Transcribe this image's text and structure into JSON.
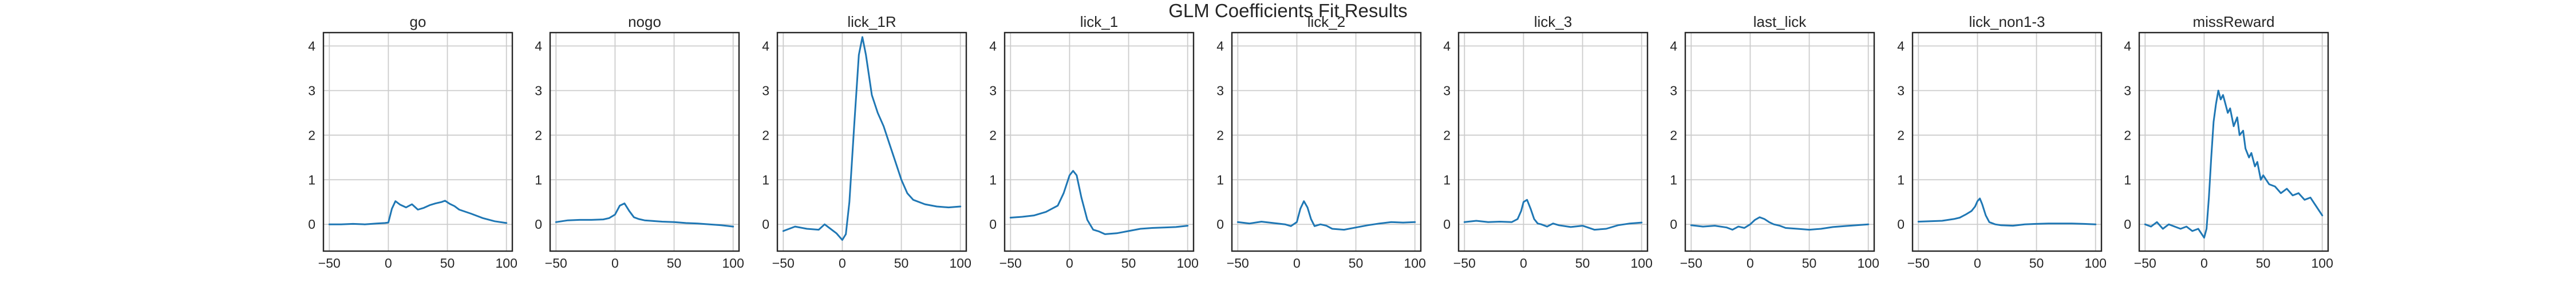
{
  "figure": {
    "title": "GLM Coefficients Fit Results"
  },
  "colors": {
    "line": "#1f77b4",
    "grid": "#cccccc",
    "axes": "#262626"
  },
  "chart_data": [
    {
      "type": "line",
      "title": "go",
      "xlabel": "",
      "ylabel": "",
      "xlim": [
        -55,
        105
      ],
      "ylim": [
        -0.6,
        4.3
      ],
      "xticks": [
        -50,
        0,
        50,
        100
      ],
      "yticks": [
        0,
        1,
        2,
        3,
        4
      ],
      "grid": true,
      "series": [
        {
          "x": [
            -50,
            -40,
            -30,
            -20,
            -10,
            -3,
            0,
            3,
            6,
            10,
            15,
            20,
            25,
            30,
            35,
            40,
            45,
            48,
            52,
            56,
            60,
            70,
            80,
            90,
            100
          ],
          "values": [
            0.0,
            0.0,
            0.01,
            0.0,
            0.02,
            0.03,
            0.04,
            0.35,
            0.52,
            0.44,
            0.38,
            0.45,
            0.33,
            0.37,
            0.43,
            0.47,
            0.5,
            0.53,
            0.46,
            0.41,
            0.33,
            0.24,
            0.14,
            0.07,
            0.03
          ]
        }
      ]
    },
    {
      "type": "line",
      "title": "nogo",
      "xlabel": "",
      "ylabel": "",
      "xlim": [
        -55,
        105
      ],
      "ylim": [
        -0.6,
        4.3
      ],
      "xticks": [
        -50,
        0,
        50,
        100
      ],
      "yticks": [
        0,
        1,
        2,
        3,
        4
      ],
      "grid": true,
      "series": [
        {
          "x": [
            -50,
            -40,
            -30,
            -20,
            -10,
            -5,
            0,
            4,
            8,
            12,
            16,
            20,
            25,
            30,
            40,
            50,
            60,
            70,
            80,
            90,
            100
          ],
          "values": [
            0.05,
            0.09,
            0.1,
            0.1,
            0.11,
            0.14,
            0.22,
            0.42,
            0.47,
            0.3,
            0.16,
            0.12,
            0.09,
            0.08,
            0.06,
            0.05,
            0.03,
            0.02,
            0.0,
            -0.02,
            -0.05
          ]
        }
      ]
    },
    {
      "type": "line",
      "title": "lick_1R",
      "xlabel": "",
      "ylabel": "",
      "xlim": [
        -55,
        105
      ],
      "ylim": [
        -0.6,
        4.3
      ],
      "xticks": [
        -50,
        0,
        50,
        100
      ],
      "yticks": [
        0,
        1,
        2,
        3,
        4
      ],
      "grid": true,
      "series": [
        {
          "x": [
            -50,
            -40,
            -30,
            -20,
            -15,
            -10,
            -5,
            0,
            3,
            6,
            10,
            14,
            17,
            20,
            25,
            30,
            35,
            40,
            45,
            50,
            55,
            60,
            70,
            80,
            90,
            100
          ],
          "values": [
            -0.15,
            -0.05,
            -0.1,
            -0.12,
            0.0,
            -0.1,
            -0.2,
            -0.35,
            -0.22,
            0.5,
            2.2,
            3.8,
            4.2,
            3.8,
            2.9,
            2.5,
            2.2,
            1.8,
            1.4,
            1.0,
            0.7,
            0.55,
            0.45,
            0.4,
            0.38,
            0.4
          ]
        }
      ]
    },
    {
      "type": "line",
      "title": "lick_1",
      "xlabel": "",
      "ylabel": "",
      "xlim": [
        -55,
        105
      ],
      "ylim": [
        -0.6,
        4.3
      ],
      "xticks": [
        -50,
        0,
        50,
        100
      ],
      "yticks": [
        0,
        1,
        2,
        3,
        4
      ],
      "grid": true,
      "series": [
        {
          "x": [
            -50,
            -40,
            -30,
            -20,
            -15,
            -10,
            -5,
            0,
            3,
            6,
            10,
            15,
            20,
            25,
            30,
            40,
            50,
            60,
            70,
            80,
            90,
            100
          ],
          "values": [
            0.15,
            0.17,
            0.2,
            0.28,
            0.35,
            0.42,
            0.7,
            1.1,
            1.2,
            1.1,
            0.6,
            0.1,
            -0.12,
            -0.16,
            -0.22,
            -0.2,
            -0.15,
            -0.1,
            -0.08,
            -0.07,
            -0.06,
            -0.03
          ]
        }
      ]
    },
    {
      "type": "line",
      "title": "lick_2",
      "xlabel": "",
      "ylabel": "",
      "xlim": [
        -55,
        105
      ],
      "ylim": [
        -0.6,
        4.3
      ],
      "xticks": [
        -50,
        0,
        50,
        100
      ],
      "yticks": [
        0,
        1,
        2,
        3,
        4
      ],
      "grid": true,
      "series": [
        {
          "x": [
            -50,
            -40,
            -30,
            -20,
            -10,
            -5,
            0,
            3,
            6,
            9,
            12,
            15,
            20,
            25,
            30,
            40,
            50,
            60,
            70,
            80,
            90,
            100
          ],
          "values": [
            0.05,
            0.02,
            0.06,
            0.03,
            0.0,
            -0.04,
            0.05,
            0.35,
            0.52,
            0.38,
            0.12,
            -0.04,
            0.0,
            -0.03,
            -0.1,
            -0.12,
            -0.07,
            -0.02,
            0.02,
            0.05,
            0.04,
            0.05
          ]
        }
      ]
    },
    {
      "type": "line",
      "title": "lick_3",
      "xlabel": "",
      "ylabel": "",
      "xlim": [
        -55,
        105
      ],
      "ylim": [
        -0.6,
        4.3
      ],
      "xticks": [
        -50,
        0,
        50,
        100
      ],
      "yticks": [
        0,
        1,
        2,
        3,
        4
      ],
      "grid": true,
      "series": [
        {
          "x": [
            -50,
            -40,
            -30,
            -20,
            -10,
            -5,
            -2,
            0,
            3,
            6,
            9,
            12,
            15,
            20,
            25,
            30,
            40,
            50,
            60,
            70,
            80,
            90,
            100
          ],
          "values": [
            0.05,
            0.08,
            0.05,
            0.06,
            0.05,
            0.12,
            0.3,
            0.5,
            0.55,
            0.35,
            0.12,
            0.02,
            0.0,
            -0.05,
            0.02,
            -0.02,
            -0.06,
            -0.03,
            -0.12,
            -0.1,
            -0.02,
            0.02,
            0.04
          ]
        }
      ]
    },
    {
      "type": "line",
      "title": "last_lick",
      "xlabel": "",
      "ylabel": "",
      "xlim": [
        -55,
        105
      ],
      "ylim": [
        -0.6,
        4.3
      ],
      "xticks": [
        -50,
        0,
        50,
        100
      ],
      "yticks": [
        0,
        1,
        2,
        3,
        4
      ],
      "grid": true,
      "series": [
        {
          "x": [
            -50,
            -40,
            -30,
            -20,
            -15,
            -10,
            -5,
            0,
            4,
            8,
            12,
            16,
            20,
            25,
            30,
            40,
            50,
            60,
            70,
            80,
            90,
            100
          ],
          "values": [
            -0.02,
            -0.05,
            -0.03,
            -0.07,
            -0.12,
            -0.05,
            -0.08,
            0.0,
            0.1,
            0.16,
            0.12,
            0.05,
            0.0,
            -0.03,
            -0.08,
            -0.1,
            -0.12,
            -0.1,
            -0.06,
            -0.04,
            -0.02,
            0.0
          ]
        }
      ]
    },
    {
      "type": "line",
      "title": "lick_non1-3",
      "xlabel": "",
      "ylabel": "",
      "xlim": [
        -55,
        105
      ],
      "ylim": [
        -0.6,
        4.3
      ],
      "xticks": [
        -50,
        0,
        50,
        100
      ],
      "yticks": [
        0,
        1,
        2,
        3,
        4
      ],
      "grid": true,
      "series": [
        {
          "x": [
            -50,
            -40,
            -30,
            -20,
            -15,
            -10,
            -5,
            -2,
            0,
            2,
            4,
            7,
            10,
            15,
            20,
            30,
            40,
            50,
            60,
            70,
            80,
            90,
            100
          ],
          "values": [
            0.06,
            0.07,
            0.08,
            0.12,
            0.15,
            0.22,
            0.3,
            0.4,
            0.52,
            0.58,
            0.45,
            0.2,
            0.05,
            0.0,
            -0.02,
            -0.03,
            0.0,
            0.01,
            0.02,
            0.02,
            0.02,
            0.01,
            0.0
          ]
        }
      ]
    },
    {
      "type": "line",
      "title": "missReward",
      "xlabel": "",
      "ylabel": "",
      "xlim": [
        -55,
        105
      ],
      "ylim": [
        -0.6,
        4.3
      ],
      "xticks": [
        -50,
        0,
        50,
        100
      ],
      "yticks": [
        0,
        1,
        2,
        3,
        4
      ],
      "grid": true,
      "series": [
        {
          "x": [
            -50,
            -45,
            -40,
            -35,
            -30,
            -25,
            -20,
            -15,
            -10,
            -5,
            0,
            2,
            4,
            6,
            8,
            10,
            12,
            14,
            16,
            18,
            20,
            22,
            25,
            28,
            30,
            33,
            35,
            38,
            40,
            43,
            45,
            48,
            50,
            55,
            60,
            65,
            70,
            75,
            80,
            85,
            90,
            95,
            100
          ],
          "values": [
            0.0,
            -0.05,
            0.05,
            -0.1,
            0.0,
            -0.05,
            -0.1,
            -0.05,
            -0.15,
            -0.1,
            -0.3,
            -0.1,
            0.6,
            1.5,
            2.3,
            2.7,
            3.0,
            2.8,
            2.9,
            2.7,
            2.5,
            2.6,
            2.2,
            2.4,
            2.0,
            2.1,
            1.7,
            1.5,
            1.6,
            1.3,
            1.4,
            1.0,
            1.1,
            0.9,
            0.85,
            0.7,
            0.8,
            0.65,
            0.7,
            0.55,
            0.6,
            0.4,
            0.2
          ]
        }
      ]
    }
  ]
}
